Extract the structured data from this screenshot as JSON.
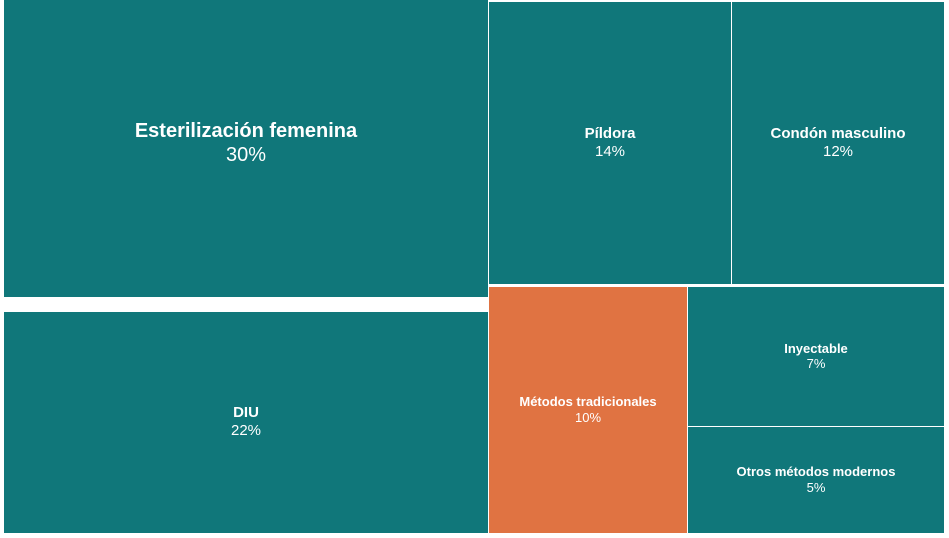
{
  "chart_data": {
    "type": "treemap",
    "title": "",
    "unit": "%",
    "colors": {
      "default": "#10777a",
      "highlight": "#e07342",
      "border": "#ffffff"
    },
    "items": [
      {
        "label": "Esterilización femenina",
        "value": 30,
        "value_label": "30%",
        "highlight": false
      },
      {
        "label": "DIU",
        "value": 22,
        "value_label": "22%",
        "highlight": false
      },
      {
        "label": "Píldora",
        "value": 14,
        "value_label": "14%",
        "highlight": false
      },
      {
        "label": "Condón masculino",
        "value": 12,
        "value_label": "12%",
        "highlight": false
      },
      {
        "label": "Métodos tradicionales",
        "value": 10,
        "value_label": "10%",
        "highlight": true
      },
      {
        "label": "Inyectable",
        "value": 7,
        "value_label": "7%",
        "highlight": false
      },
      {
        "label": "Otros métodos modernos",
        "value": 5,
        "value_label": "5%",
        "highlight": false
      }
    ]
  }
}
